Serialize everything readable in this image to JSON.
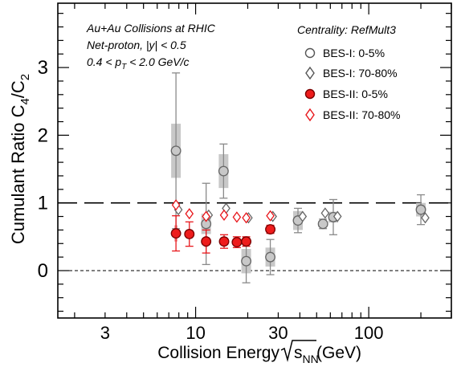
{
  "chart_data": {
    "type": "scatter",
    "x_scale": "log",
    "xlim": [
      1.6,
      300
    ],
    "ylim": [
      -0.7,
      3.95
    ],
    "x_ticks": [
      3,
      10,
      30,
      100
    ],
    "x_tick_labels": [
      "3",
      "10",
      "30",
      "100"
    ],
    "y_ticks": [
      0,
      1,
      2,
      3
    ],
    "y_tick_labels": [
      "0",
      "1",
      "2",
      "3"
    ],
    "xlabel": {
      "main": "Collision Energy ",
      "sqrt": "s",
      "sub": "NN",
      "unit": " (GeV)"
    },
    "ylabel": {
      "main": "Cumulant Ratio C",
      "sub1": "4",
      "slash": "/C",
      "sub2": "2"
    },
    "annotations": {
      "line1": "Au+Au Collisions at RHIC",
      "line2": "Net-proton, |y| < 0.5",
      "line3_a": "0.4 < p",
      "line3_sub": "T",
      "line3_b": " < 2.0 GeV/c"
    },
    "legend": {
      "title": "Centrality: RefMult3",
      "placement": "top-right",
      "entries": [
        {
          "label": "BES-I: 0-5%",
          "marker": "circle-open",
          "color": "#555555"
        },
        {
          "label": "BES-I: 70-80%",
          "marker": "diamond-open",
          "color": "#555555"
        },
        {
          "label": "BES-II: 0-5%",
          "marker": "circle-filled",
          "color": "#e8161b"
        },
        {
          "label": "BES-II: 70-80%",
          "marker": "diamond-open",
          "color": "#e8161b"
        }
      ]
    },
    "reference_lines": [
      {
        "y": 1,
        "style": "long-dash"
      },
      {
        "y": 0,
        "style": "short-dash"
      }
    ],
    "series": [
      {
        "name": "BES-I: 0-5%",
        "marker": "circle",
        "fill": "#c8c8c8",
        "stroke": "#666666",
        "points": [
          {
            "x": 7.7,
            "y": 1.77,
            "err": 1.15,
            "sys": 0.4
          },
          {
            "x": 11.5,
            "y": 0.69,
            "err": 0.6,
            "sys": 0.15
          },
          {
            "x": 14.5,
            "y": 1.47,
            "err": 0.4,
            "sys": 0.25
          },
          {
            "x": 19.6,
            "y": 0.14,
            "err": 0.32,
            "sys": 0.18
          },
          {
            "x": 27,
            "y": 0.2,
            "err": 0.26,
            "sys": 0.14
          },
          {
            "x": 39,
            "y": 0.74,
            "err": 0.18,
            "sys": 0.14
          },
          {
            "x": 54.4,
            "y": 0.69,
            "err": 0.07,
            "sys": 0.04
          },
          {
            "x": 62.4,
            "y": 0.79,
            "err": 0.26,
            "sys": 0.08
          },
          {
            "x": 200,
            "y": 0.9,
            "err": 0.22,
            "sys": 0.1
          }
        ]
      },
      {
        "name": "BES-I: 70-80%",
        "marker": "diamond",
        "fill": "#ffffff",
        "stroke": "#666666",
        "points": [
          {
            "x": 7.95,
            "y": 0.9
          },
          {
            "x": 11.9,
            "y": 0.82
          },
          {
            "x": 15.0,
            "y": 0.92
          },
          {
            "x": 20.2,
            "y": 0.78
          },
          {
            "x": 27.9,
            "y": 0.8
          },
          {
            "x": 41.5,
            "y": 0.8
          },
          {
            "x": 56,
            "y": 0.85
          },
          {
            "x": 66,
            "y": 0.8
          },
          {
            "x": 212,
            "y": 0.78
          }
        ]
      },
      {
        "name": "BES-II: 0-5%",
        "marker": "circle",
        "fill": "#ee1c1c",
        "stroke": "#7a0000",
        "points": [
          {
            "x": 7.7,
            "y": 0.55,
            "err": 0.26,
            "sys": 0.12
          },
          {
            "x": 9.2,
            "y": 0.54,
            "err": 0.18,
            "sys": 0.06
          },
          {
            "x": 11.5,
            "y": 0.43,
            "err": 0.17,
            "sys": 0.08
          },
          {
            "x": 14.6,
            "y": 0.43,
            "err": 0.1,
            "sys": 0.05
          },
          {
            "x": 17.3,
            "y": 0.42,
            "err": 0.08,
            "sys": 0.04
          },
          {
            "x": 19.6,
            "y": 0.43,
            "err": 0.07,
            "sys": 0.04
          },
          {
            "x": 27,
            "y": 0.61,
            "err": 0.06,
            "sys": 0.03
          }
        ]
      },
      {
        "name": "BES-II: 70-80%",
        "marker": "diamond",
        "fill": "#ffffff",
        "stroke": "#e8161b",
        "points": [
          {
            "x": 7.7,
            "y": 0.97
          },
          {
            "x": 9.2,
            "y": 0.84
          },
          {
            "x": 11.5,
            "y": 0.8
          },
          {
            "x": 14.6,
            "y": 0.82
          },
          {
            "x": 17.3,
            "y": 0.79
          },
          {
            "x": 19.6,
            "y": 0.78
          },
          {
            "x": 27,
            "y": 0.81
          }
        ]
      }
    ]
  }
}
